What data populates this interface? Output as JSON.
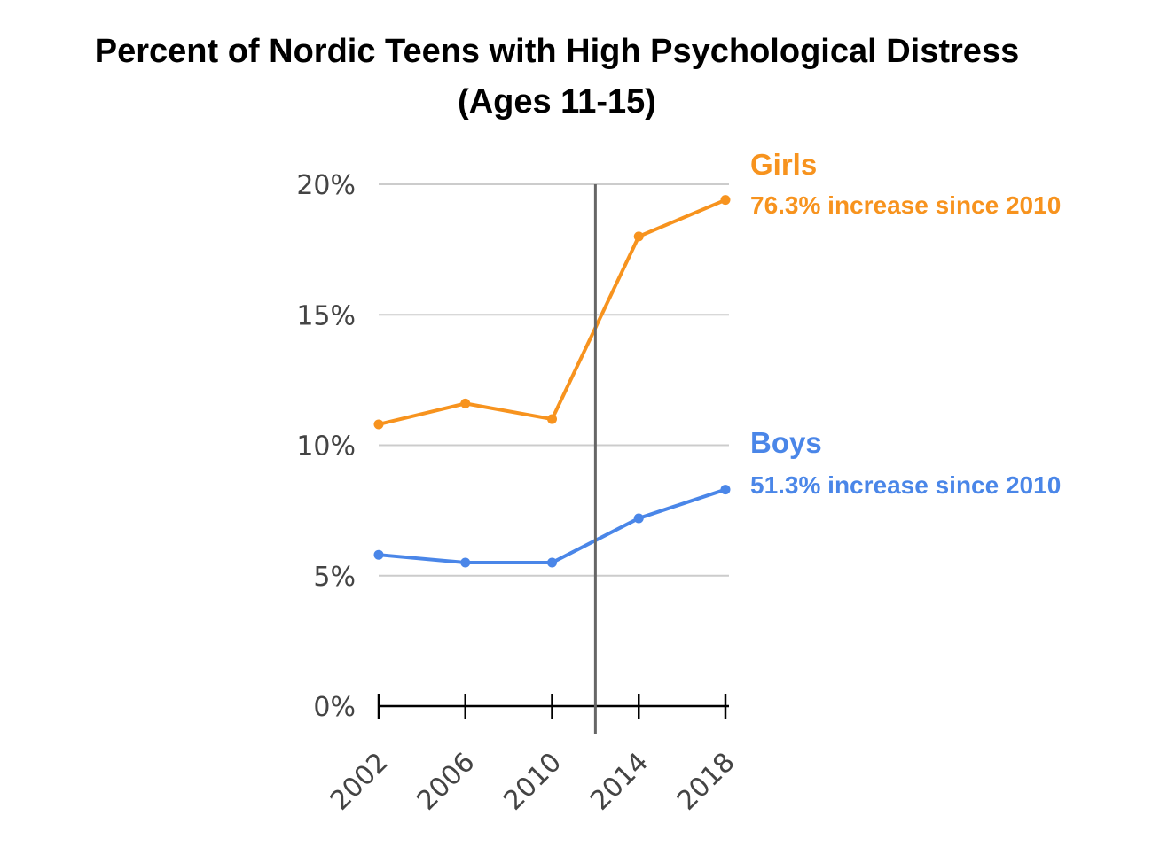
{
  "chart_data": {
    "type": "line",
    "title": "Percent of Nordic Teens with High Psychological Distress",
    "subtitle": "(Ages 11-15)",
    "categories": [
      "2002",
      "2006",
      "2010",
      "2014",
      "2018"
    ],
    "series": [
      {
        "name": "Girls",
        "annotation": "76.3% increase since 2010",
        "color": "#f7931e",
        "values": [
          10.8,
          11.6,
          11.0,
          18.0,
          19.4
        ]
      },
      {
        "name": "Boys",
        "annotation": "51.3% increase since 2010",
        "color": "#4a86e8",
        "values": [
          5.8,
          5.5,
          5.5,
          7.2,
          8.3
        ]
      }
    ],
    "ylim": [
      0,
      20
    ],
    "yticks": [
      "0%",
      "5%",
      "10%",
      "15%",
      "20%"
    ],
    "grid": true,
    "reference_line_between": [
      "2010",
      "2014"
    ]
  }
}
